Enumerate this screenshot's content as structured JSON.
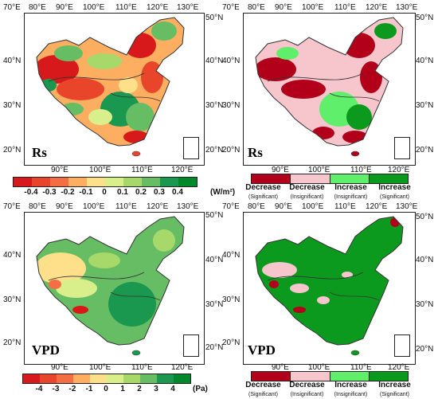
{
  "panels": [
    {
      "id": "rs-trend",
      "label": "Rs",
      "top_lon": [
        "70°E",
        "80°E",
        "90°E",
        "100°E",
        "110°E",
        "120°E",
        "130°E"
      ],
      "bottom_lon": [
        "90°E",
        "100°E",
        "110°E",
        "120°E"
      ],
      "right_lat": [
        "50°N",
        "40°N",
        "30°N",
        "20°N"
      ],
      "left_lat": [
        "40°N",
        "30°N",
        "20°N"
      ],
      "colorbar_ticks": [
        "-0.4",
        "-0.3",
        "-0.2",
        "-0.1",
        "0",
        "0.1",
        "0.2",
        "0.3",
        "0.4"
      ],
      "colorbar_unit": "(W/m²)",
      "colorbar_colors": [
        "#d7191c",
        "#e8452a",
        "#f46d43",
        "#fdae61",
        "#fee08b",
        "#d9ef8b",
        "#a6d96a",
        "#66bd63",
        "#1a9850",
        "#00882b"
      ]
    },
    {
      "id": "rs-significance",
      "label": "Rs",
      "top_lon": [
        "70°E",
        "80°E",
        "90°E",
        "100°E",
        "110°E",
        "120°E",
        "130°E"
      ],
      "bottom_lon": [
        "90°E",
        "100°E",
        "110°E",
        "120°E"
      ],
      "right_lat": [
        "50°N",
        "40°N",
        "30°N",
        "20°N"
      ],
      "left_lat": [
        "40°N",
        "30°N",
        "20°N"
      ]
    },
    {
      "id": "vpd-trend",
      "label": "VPD",
      "top_lon": [
        "70°E",
        "80°E",
        "90°E",
        "100°E",
        "110°E",
        "120°E",
        "130°E"
      ],
      "bottom_lon": [
        "90°E",
        "100°E",
        "110°E",
        "120°E"
      ],
      "right_lat": [
        "50°N",
        "40°N",
        "30°N",
        "20°N"
      ],
      "left_lat": [
        "40°N",
        "30°N",
        "20°N"
      ],
      "colorbar_ticks": [
        "-4",
        "-3",
        "-2",
        "-1",
        "0",
        "1",
        "2",
        "3",
        "4"
      ],
      "colorbar_unit": "(Pa)",
      "colorbar_colors": [
        "#d7191c",
        "#e8452a",
        "#f46d43",
        "#fdae61",
        "#fee08b",
        "#d9ef8b",
        "#a6d96a",
        "#66bd63",
        "#1a9850",
        "#00882b"
      ]
    },
    {
      "id": "vpd-significance",
      "label": "VPD",
      "top_lon": [
        "70°E",
        "80°E",
        "90°E",
        "100°E",
        "110°E",
        "120°E",
        "130°E"
      ],
      "bottom_lon": [
        "90°E",
        "100°E",
        "110°E",
        "120°E"
      ],
      "right_lat": [
        "50°N",
        "40°N",
        "30°N",
        "20°N"
      ],
      "left_lat": [
        "40°N",
        "30°N",
        "20°N"
      ]
    }
  ],
  "significance_legend": [
    {
      "main": "Decrease",
      "sub": "(Significant)",
      "color": "#b2001a"
    },
    {
      "main": "Decrease",
      "sub": "(Insignificant)",
      "color": "#f7c6cc"
    },
    {
      "main": "Increase",
      "sub": "(Insignificant)",
      "color": "#5fef6a"
    },
    {
      "main": "Increase",
      "sub": "(Significant)",
      "color": "#0c9a1e"
    }
  ]
}
